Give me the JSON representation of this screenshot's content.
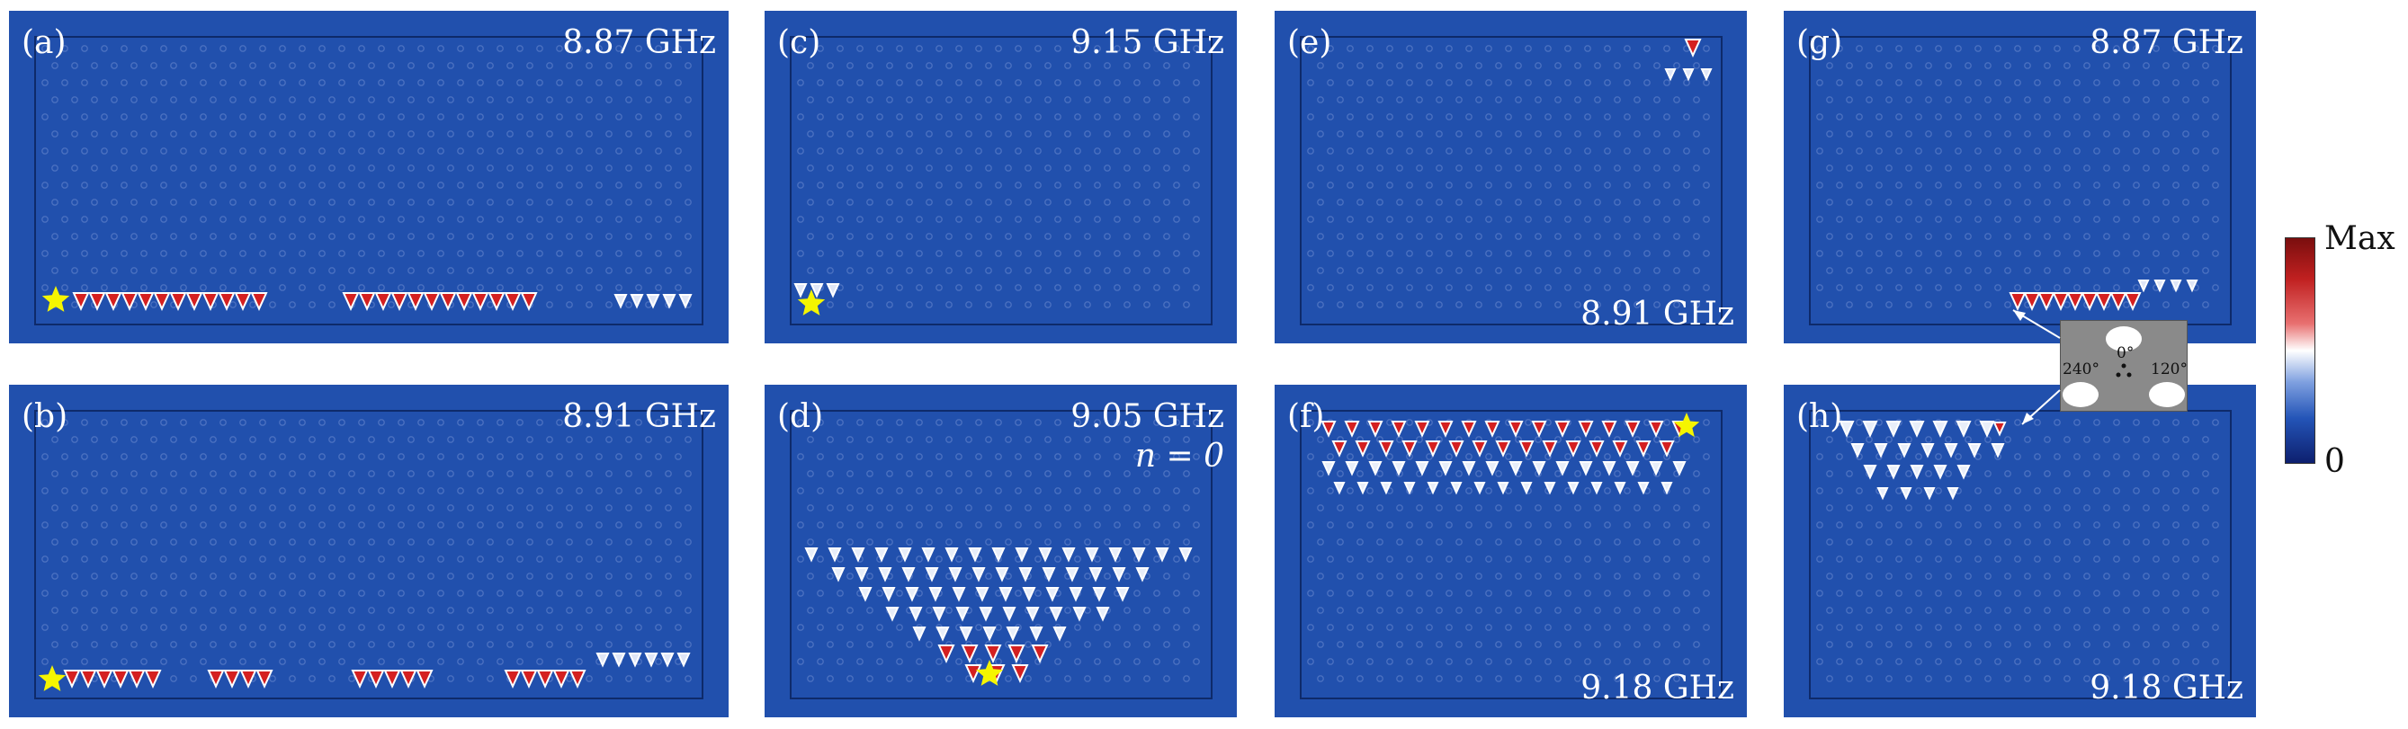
{
  "panels": [
    {
      "label": "(a)",
      "freq": "8.87 GHz"
    },
    {
      "label": "(b)",
      "freq": "8.91 GHz"
    },
    {
      "label": "(c)",
      "freq": "9.15 GHz"
    },
    {
      "label": "(d)",
      "freq": "9.05 GHz",
      "mode": "n = 0"
    },
    {
      "label": "(e)",
      "freq": "8.91 GHz"
    },
    {
      "label": "(f)",
      "freq": "9.18 GHz"
    },
    {
      "label": "(g)",
      "freq": "8.87 GHz"
    },
    {
      "label": "(h)",
      "freq": "9.18 GHz"
    }
  ],
  "colorbar": {
    "max_label": "Max",
    "min_label": "0"
  },
  "inset": {
    "angle_top": "0°",
    "angle_left": "240°",
    "angle_right": "120°"
  },
  "colors": {
    "background_field": "#2150ad",
    "hot": "#d42020",
    "source_star": "#f5f500"
  }
}
